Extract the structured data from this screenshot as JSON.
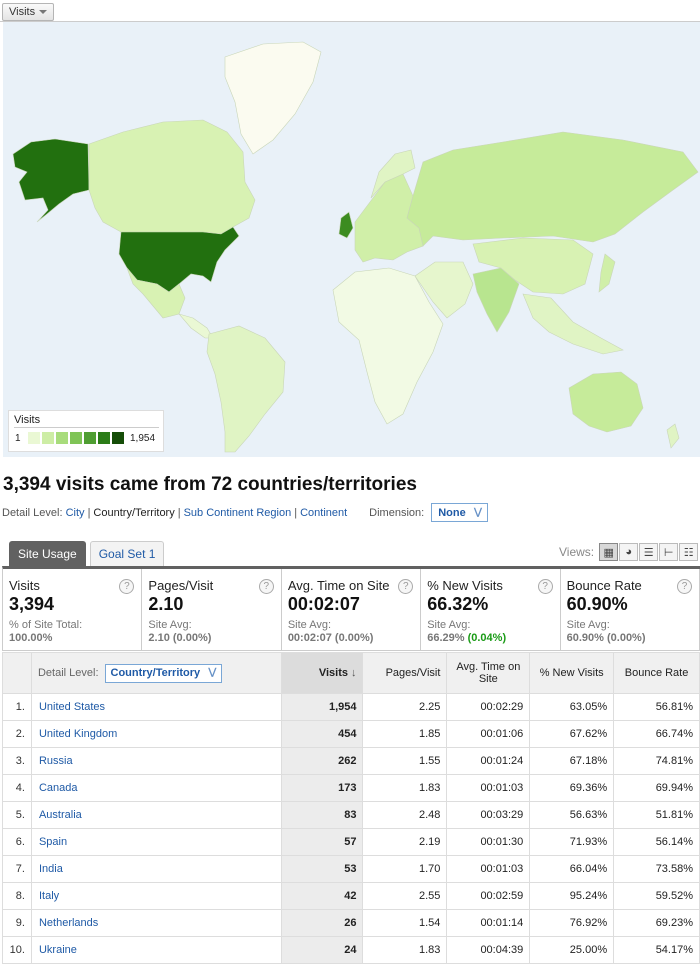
{
  "map": {
    "metric_dropdown": "Visits",
    "legend": {
      "title": "Visits",
      "min": "1",
      "max": "1,954"
    },
    "colors": {
      "ocean": "#e9f1f8",
      "no_data": "#fdfdf5",
      "low": "#d9f3b8",
      "mid": "#b8e58f",
      "high": "#1f7a12",
      "top": "#22700f"
    }
  },
  "summary": {
    "title": "3,394 visits came from 72 countries/territories"
  },
  "detail_level": {
    "label": "Detail Level:",
    "options": [
      "City",
      "Country/Territory",
      "Sub Continent Region",
      "Continent"
    ],
    "current": "Country/Territory",
    "dimension_label": "Dimension:",
    "dimension_value": "None"
  },
  "tabs": [
    "Site Usage",
    "Goal Set 1"
  ],
  "views": {
    "label": "Views:"
  },
  "scorecard": [
    {
      "name": "Visits",
      "value": "3,394",
      "sub1": "% of Site Total:",
      "sub2": "100.00%",
      "sub2_extra": ""
    },
    {
      "name": "Pages/Visit",
      "value": "2.10",
      "sub1": "Site Avg:",
      "sub2": "2.10 (0.00%)",
      "sub2_extra": ""
    },
    {
      "name": "Avg. Time on Site",
      "value": "00:02:07",
      "sub1": "Site Avg:",
      "sub2": "00:02:07 (0.00%)",
      "sub2_extra": ""
    },
    {
      "name": "% New Visits",
      "value": "66.32%",
      "sub1": "Site Avg:",
      "sub2": "66.29%",
      "sub2_extra": "(0.04%)"
    },
    {
      "name": "Bounce Rate",
      "value": "60.90%",
      "sub1": "Site Avg:",
      "sub2": "60.90% (0.00%)",
      "sub2_extra": ""
    }
  ],
  "table": {
    "detail_label": "Detail Level:",
    "detail_value": "Country/Territory",
    "headers": {
      "visits": "Visits",
      "pages": "Pages/Visit",
      "time": "Avg. Time on Site",
      "new": "% New Visits",
      "bounce": "Bounce Rate"
    },
    "rows": [
      {
        "idx": "1.",
        "country": "United States",
        "visits": "1,954",
        "pages": "2.25",
        "time": "00:02:29",
        "new": "63.05%",
        "bounce": "56.81%"
      },
      {
        "idx": "2.",
        "country": "United Kingdom",
        "visits": "454",
        "pages": "1.85",
        "time": "00:01:06",
        "new": "67.62%",
        "bounce": "66.74%"
      },
      {
        "idx": "3.",
        "country": "Russia",
        "visits": "262",
        "pages": "1.55",
        "time": "00:01:24",
        "new": "67.18%",
        "bounce": "74.81%"
      },
      {
        "idx": "4.",
        "country": "Canada",
        "visits": "173",
        "pages": "1.83",
        "time": "00:01:03",
        "new": "69.36%",
        "bounce": "69.94%"
      },
      {
        "idx": "5.",
        "country": "Australia",
        "visits": "83",
        "pages": "2.48",
        "time": "00:03:29",
        "new": "56.63%",
        "bounce": "51.81%"
      },
      {
        "idx": "6.",
        "country": "Spain",
        "visits": "57",
        "pages": "2.19",
        "time": "00:01:30",
        "new": "71.93%",
        "bounce": "56.14%"
      },
      {
        "idx": "7.",
        "country": "India",
        "visits": "53",
        "pages": "1.70",
        "time": "00:01:03",
        "new": "66.04%",
        "bounce": "73.58%"
      },
      {
        "idx": "8.",
        "country": "Italy",
        "visits": "42",
        "pages": "2.55",
        "time": "00:02:59",
        "new": "95.24%",
        "bounce": "59.52%"
      },
      {
        "idx": "9.",
        "country": "Netherlands",
        "visits": "26",
        "pages": "1.54",
        "time": "00:01:14",
        "new": "76.92%",
        "bounce": "69.23%"
      },
      {
        "idx": "10.",
        "country": "Ukraine",
        "visits": "24",
        "pages": "1.83",
        "time": "00:04:39",
        "new": "25.00%",
        "bounce": "54.17%"
      }
    ]
  }
}
